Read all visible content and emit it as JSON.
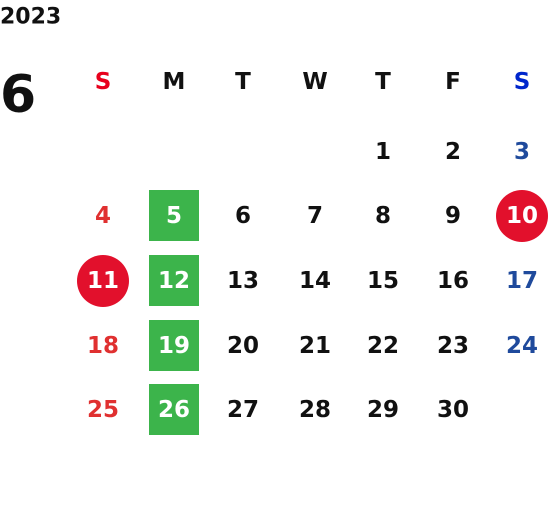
{
  "calendar": {
    "year": "2023",
    "month": "6",
    "weekdays": [
      "S",
      "M",
      "T",
      "W",
      "T",
      "F",
      "S"
    ],
    "colors": {
      "text": "#111111",
      "sunday_header": "#e8001c",
      "saturday_header": "#0026cc",
      "sunday": "#e03030",
      "saturday": "#1f4a9c",
      "marked_text": "#ffffff"
    },
    "marks": {
      "green": {
        "shape": "square",
        "color": "#3cb44b"
      },
      "red": {
        "shape": "circle",
        "color": "#e2102c"
      }
    },
    "weeks": [
      [
        null,
        null,
        null,
        null,
        {
          "day": 1
        },
        {
          "day": 2
        },
        {
          "day": 3
        }
      ],
      [
        {
          "day": 4
        },
        {
          "day": 5,
          "mark": "green"
        },
        {
          "day": 6
        },
        {
          "day": 7
        },
        {
          "day": 8
        },
        {
          "day": 9
        },
        {
          "day": 10,
          "mark": "red"
        }
      ],
      [
        {
          "day": 11,
          "mark": "red"
        },
        {
          "day": 12,
          "mark": "green"
        },
        {
          "day": 13
        },
        {
          "day": 14
        },
        {
          "day": 15
        },
        {
          "day": 16
        },
        {
          "day": 17
        }
      ],
      [
        {
          "day": 18
        },
        {
          "day": 19,
          "mark": "green"
        },
        {
          "day": 20
        },
        {
          "day": 21
        },
        {
          "day": 22
        },
        {
          "day": 23
        },
        {
          "day": 24
        }
      ],
      [
        {
          "day": 25
        },
        {
          "day": 26,
          "mark": "green"
        },
        {
          "day": 27
        },
        {
          "day": 28
        },
        {
          "day": 29
        },
        {
          "day": 30
        },
        null
      ]
    ]
  }
}
